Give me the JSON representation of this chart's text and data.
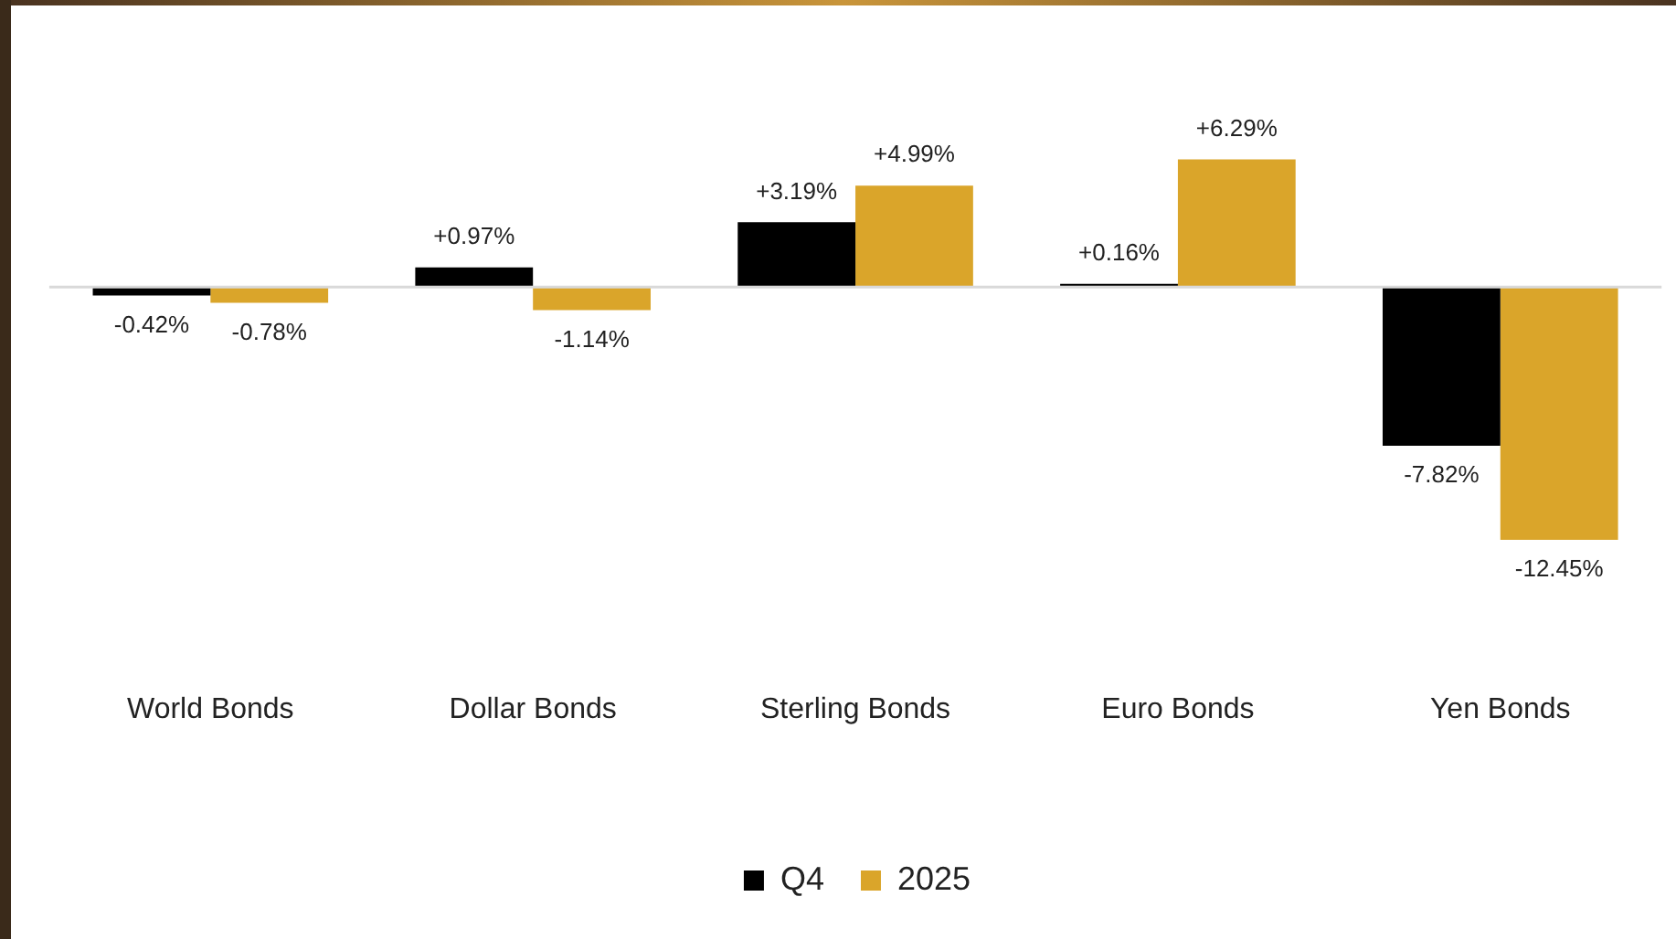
{
  "chart_data": {
    "type": "bar",
    "categories": [
      "World Bonds",
      "Dollar Bonds",
      "Sterling Bonds",
      "Euro Bonds",
      "Yen Bonds"
    ],
    "series": [
      {
        "name": "Q4",
        "color": "#000000",
        "values": [
          -0.42,
          0.97,
          3.19,
          0.16,
          -7.82
        ],
        "value_labels": [
          "-0.42%",
          "+0.97%",
          "+3.19%",
          "+0.16%",
          "-7.82%"
        ]
      },
      {
        "name": "2025",
        "color": "#daa52a",
        "values": [
          -0.78,
          -1.14,
          4.99,
          6.29,
          -12.45
        ],
        "value_labels": [
          "-0.78%",
          "-1.14%",
          "+4.99%",
          "+6.29%",
          "-12.45%"
        ]
      }
    ],
    "grid": false,
    "legend": "bottom"
  }
}
